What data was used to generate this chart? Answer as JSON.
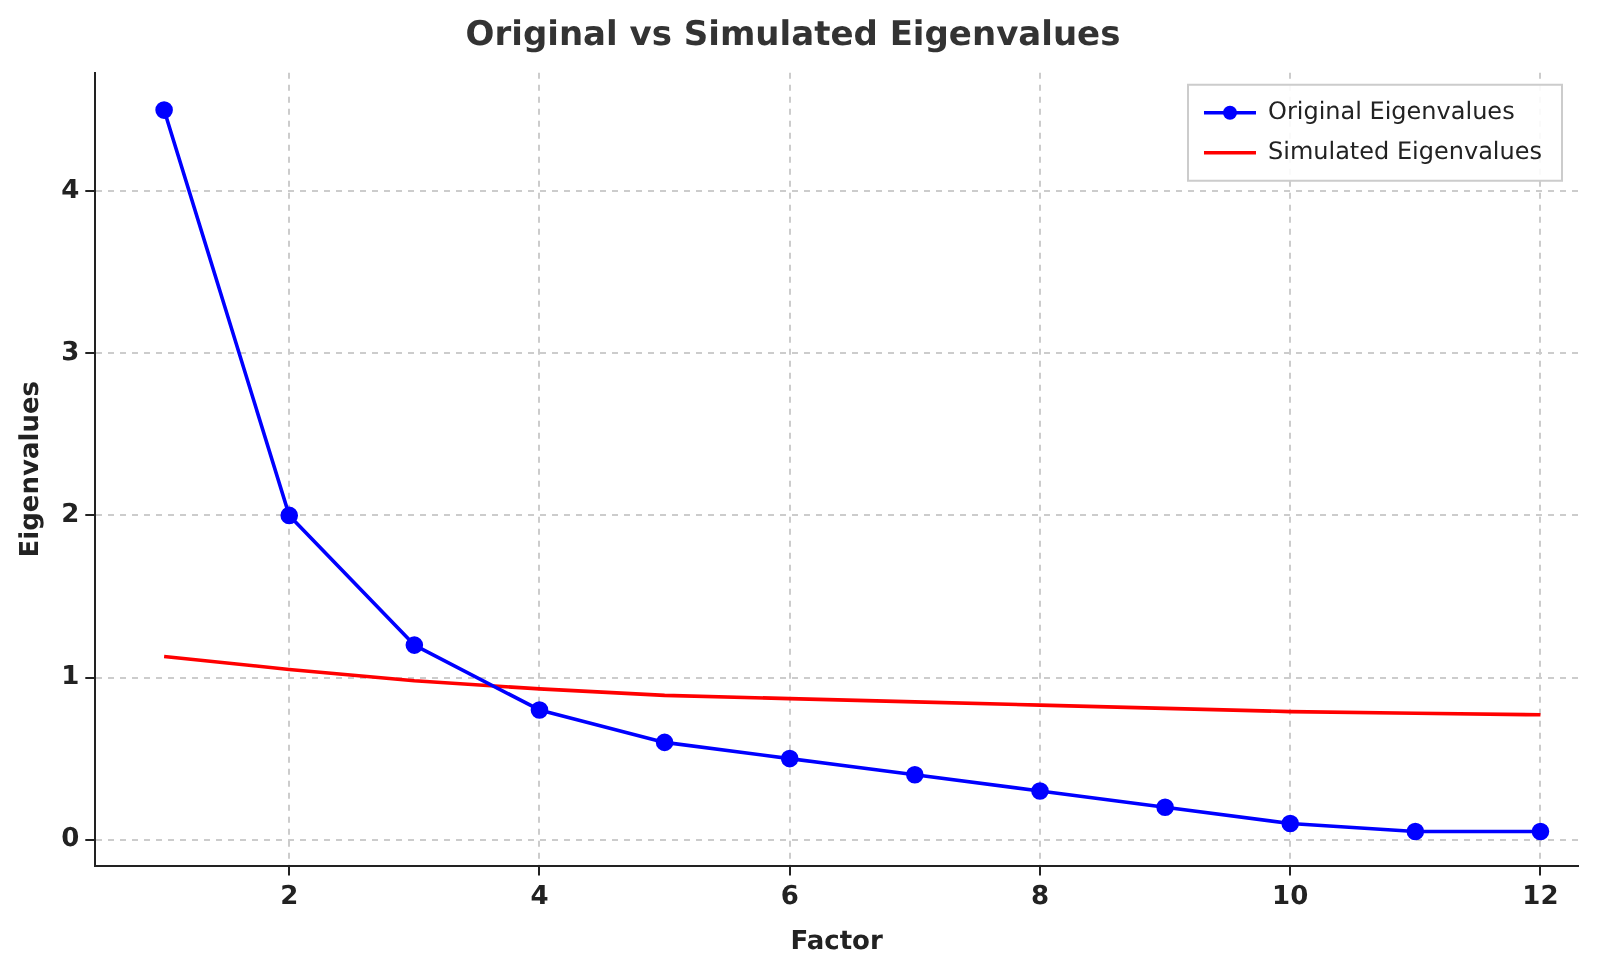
{
  "chart_data": {
    "type": "line",
    "title": "Original vs Simulated Eigenvalues",
    "xlabel": "Factor",
    "ylabel": "Eigenvalues",
    "x": [
      1,
      2,
      3,
      4,
      5,
      6,
      7,
      8,
      9,
      10,
      11,
      12
    ],
    "series": [
      {
        "name": "Original Eigenvalues",
        "color": "#0000ff",
        "marker": "circle",
        "values": [
          4.5,
          2.0,
          1.2,
          0.8,
          0.6,
          0.5,
          0.4,
          0.3,
          0.2,
          0.1,
          0.05,
          0.05
        ]
      },
      {
        "name": "Simulated Eigenvalues",
        "color": "#ff0000",
        "marker": "none",
        "values": [
          1.13,
          1.05,
          0.98,
          0.93,
          0.89,
          0.87,
          0.85,
          0.83,
          0.81,
          0.79,
          0.78,
          0.77
        ]
      }
    ],
    "xlim": [
      0.45,
      12.3
    ],
    "ylim": [
      -0.16,
      4.73
    ],
    "xticks": [
      2,
      4,
      6,
      8,
      10,
      12
    ],
    "yticks": [
      0,
      1,
      2,
      3,
      4
    ],
    "grid": true,
    "legend": "top right",
    "line_style": "solid"
  }
}
